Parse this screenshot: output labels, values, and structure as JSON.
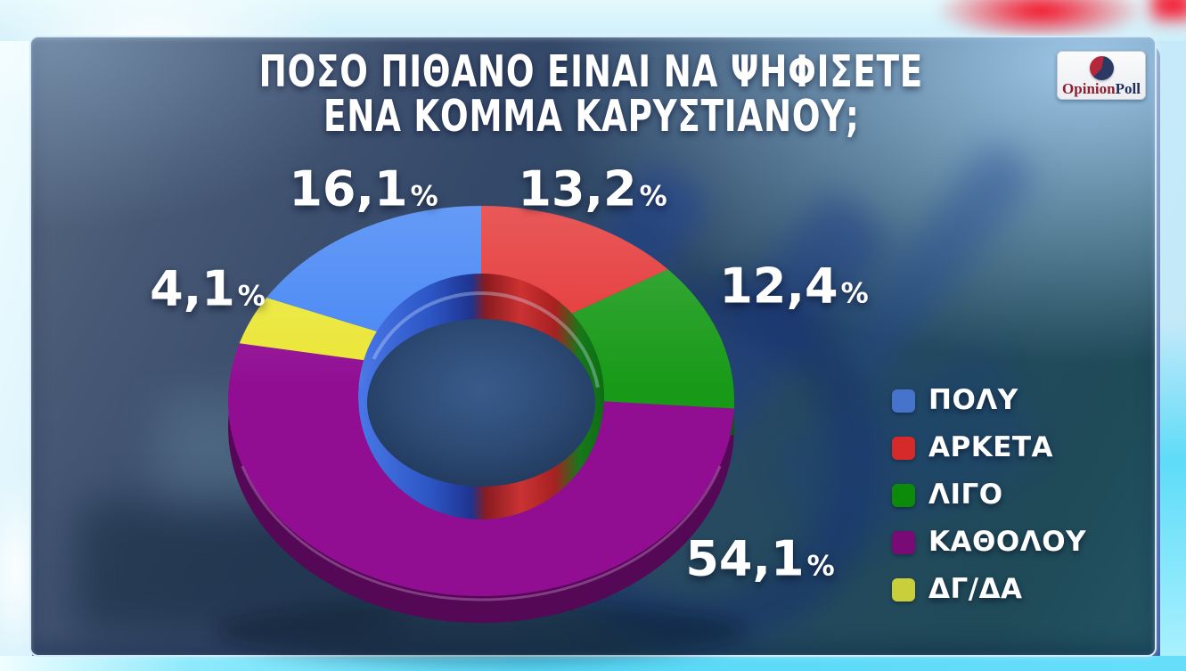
{
  "header": {
    "title_line1": "ΠΟΣΟ ΠΙΘΑΝΟ ΕΙΝΑΙ ΝΑ ΨΗΦΙΣΕΤΕ",
    "title_line2": "ΕΝΑ ΚΟΜΜΑ ΚΑΡΥΣΤΙΑΝΟΥ;"
  },
  "logo": {
    "text_primary": "Opinion",
    "text_secondary": "Poll",
    "icon": "pie-chart-icon",
    "text_primary_color": "#8c1f30",
    "text_secondary_color": "#1f2c57"
  },
  "chart_data": {
    "type": "pie",
    "style": "3d-donut",
    "title": "ΠΟΣΟ ΠΙΘΑΝΟ ΕΙΝΑΙ ΝΑ ΨΗΦΙΣΕΤΕ ΕΝΑ ΚΟΜΜΑ ΚΑΡΥΣΤΙΑΝΟΥ;",
    "unit": "%",
    "legend_position": "right",
    "segments": [
      {
        "label": "ΠΟΛΥ",
        "value": 16.1,
        "display": "16,1",
        "color": "#4485f4",
        "legend_color": "#4673cc"
      },
      {
        "label": "ΑΡΚΕΤΑ",
        "value": 13.2,
        "display": "13,2",
        "color": "#e43434",
        "legend_color": "#d62a2a"
      },
      {
        "label": "ΛΙΓΟ",
        "value": 12.4,
        "display": "12,4",
        "color": "#189a18",
        "legend_color": "#0c8a0a"
      },
      {
        "label": "ΚΑΘΟΛΟΥ",
        "value": 54.1,
        "display": "54,1",
        "color": "#910e93",
        "legend_color": "#7a0a76"
      },
      {
        "label": "ΔΓ/ΔΑ",
        "value": 4.1,
        "display": "4,1",
        "color": "#ebe636",
        "legend_color": "#c8cf3a"
      }
    ]
  }
}
